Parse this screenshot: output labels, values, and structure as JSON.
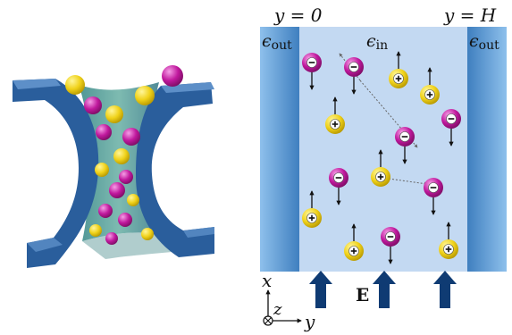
{
  "labels": {
    "y_left": "y = 0",
    "y_right": "y = H",
    "eps_out": "ϵ",
    "eps_out_sub": "out",
    "eps_in": "ϵ",
    "eps_in_sub": "in",
    "field": "E",
    "axis_x": "x",
    "axis_y": "y",
    "axis_z": "z"
  },
  "colors": {
    "channel_bg": "#c3d9f2",
    "wall_light": "#8ec0ec",
    "wall_dark": "#2f6fa9",
    "arrow_fill": "#0f3b73",
    "cation": "#f0d21a",
    "anion": "#c1199e",
    "pore_frame": "#2a5e9c"
  },
  "ions": [
    {
      "kind": "anion",
      "dir": "down"
    },
    {
      "kind": "anion",
      "dir": "down"
    },
    {
      "kind": "cation",
      "dir": "up"
    },
    {
      "kind": "cation",
      "dir": "up"
    },
    {
      "kind": "anion",
      "dir": "down"
    },
    {
      "kind": "cation",
      "dir": "up"
    },
    {
      "kind": "anion",
      "dir": "down"
    },
    {
      "kind": "anion",
      "dir": "down"
    },
    {
      "kind": "cation",
      "dir": "up"
    },
    {
      "kind": "anion",
      "dir": "down"
    },
    {
      "kind": "cation",
      "dir": "up"
    },
    {
      "kind": "cation",
      "dir": "up"
    },
    {
      "kind": "anion",
      "dir": "down"
    },
    {
      "kind": "cation",
      "dir": "up"
    }
  ]
}
